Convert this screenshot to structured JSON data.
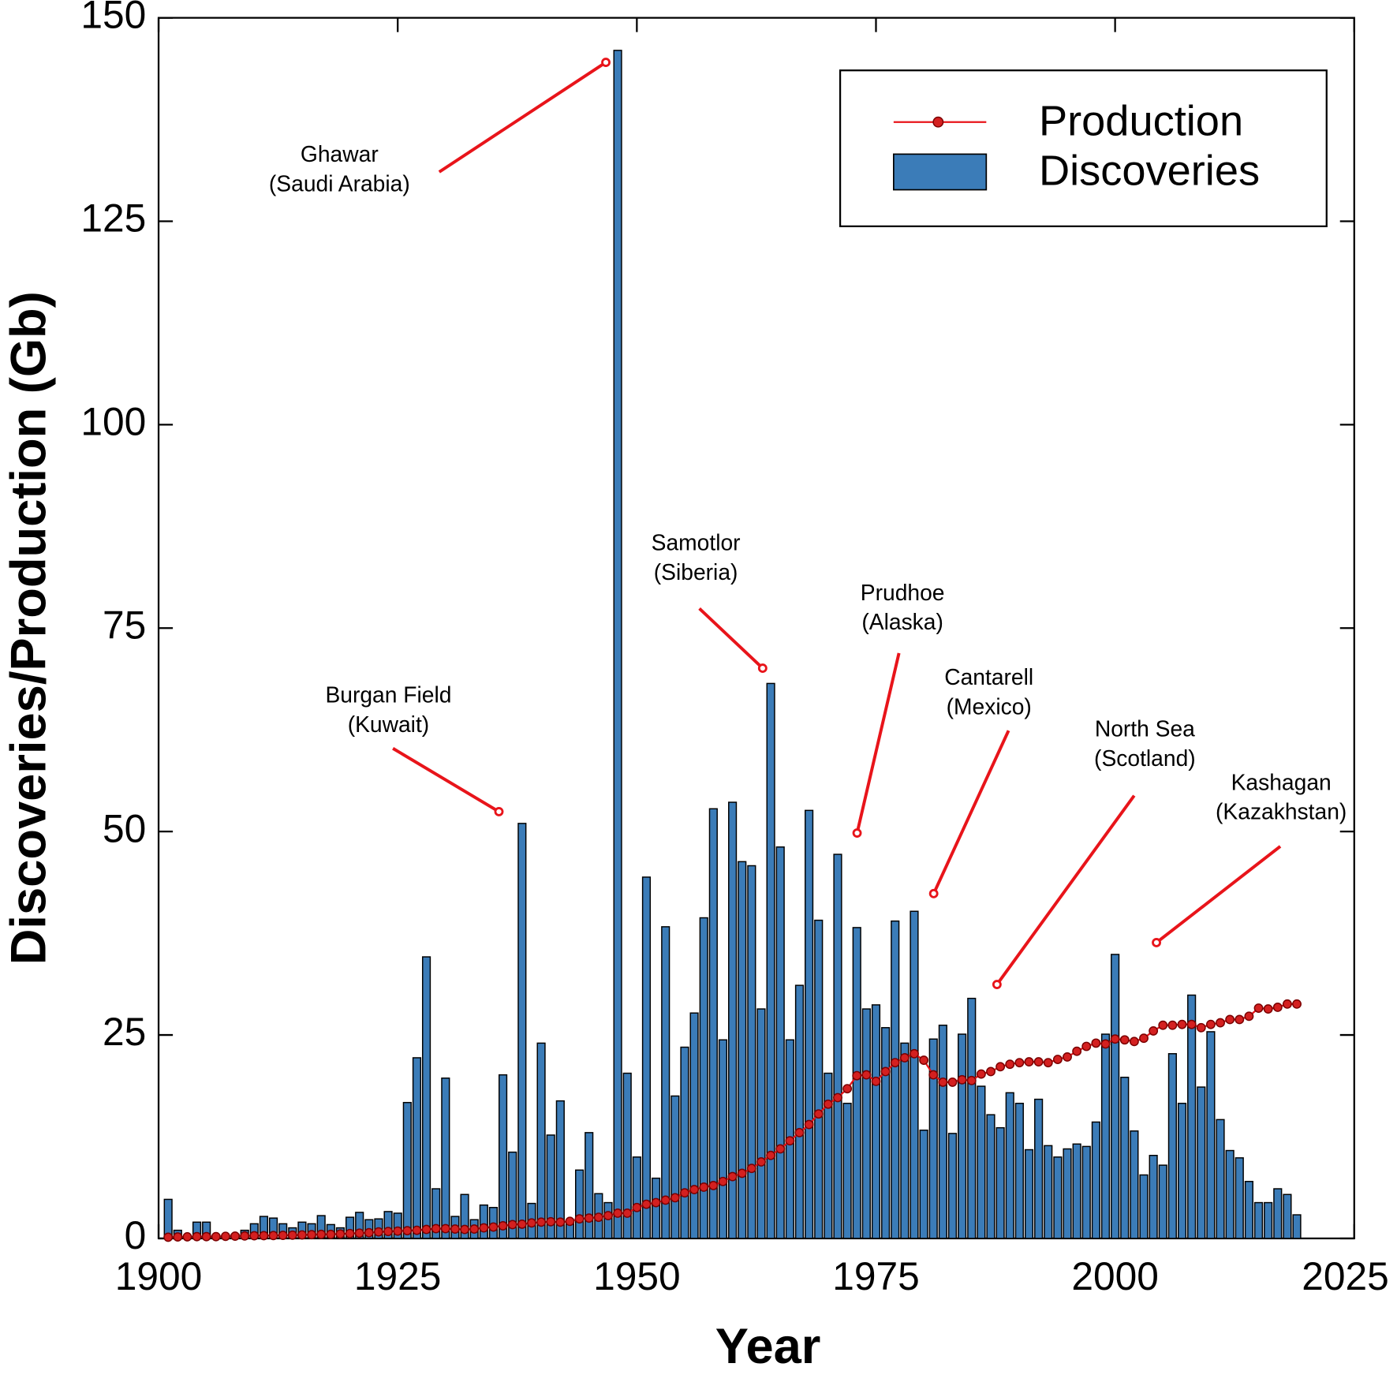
{
  "chart_data": {
    "type": "combo",
    "x_label": "Year",
    "y_label": "Discoveries/Production (Gb)",
    "xlim": [
      1900,
      2025
    ],
    "xticks": [
      1900,
      1925,
      1950,
      1975,
      2000,
      2025
    ],
    "ylim": [
      0,
      150
    ],
    "yticks": [
      0,
      25,
      50,
      75,
      100,
      125,
      150
    ],
    "legend": "upper right",
    "x": [
      1901,
      1902,
      1903,
      1904,
      1905,
      1906,
      1907,
      1908,
      1909,
      1910,
      1911,
      1912,
      1913,
      1914,
      1915,
      1916,
      1917,
      1918,
      1919,
      1920,
      1921,
      1922,
      1923,
      1924,
      1925,
      1926,
      1927,
      1928,
      1929,
      1930,
      1931,
      1932,
      1933,
      1934,
      1935,
      1936,
      1937,
      1938,
      1939,
      1940,
      1941,
      1942,
      1943,
      1944,
      1945,
      1946,
      1947,
      1948,
      1949,
      1950,
      1951,
      1952,
      1953,
      1954,
      1955,
      1956,
      1957,
      1958,
      1959,
      1960,
      1961,
      1962,
      1963,
      1964,
      1965,
      1966,
      1967,
      1968,
      1969,
      1970,
      1971,
      1972,
      1973,
      1974,
      1975,
      1976,
      1977,
      1978,
      1979,
      1980,
      1981,
      1982,
      1983,
      1984,
      1985,
      1986,
      1987,
      1988,
      1989,
      1990,
      1991,
      1992,
      1993,
      1994,
      1995,
      1996,
      1997,
      1998,
      1999,
      2000,
      2001,
      2002,
      2003,
      2004,
      2005,
      2006,
      2007,
      2008,
      2009,
      2010,
      2011,
      2012,
      2013,
      2014,
      2015,
      2016,
      2017,
      2018,
      2019
    ],
    "series": [
      {
        "name": "Production",
        "type": "line",
        "color": "#e8141a",
        "marker_color": "#d42020",
        "values": [
          0.15,
          0.18,
          0.2,
          0.22,
          0.22,
          0.22,
          0.26,
          0.28,
          0.3,
          0.33,
          0.34,
          0.35,
          0.38,
          0.4,
          0.43,
          0.46,
          0.5,
          0.5,
          0.55,
          0.6,
          0.65,
          0.7,
          0.8,
          0.85,
          0.9,
          0.95,
          1.0,
          1.1,
          1.2,
          1.2,
          1.15,
          1.1,
          1.15,
          1.3,
          1.4,
          1.55,
          1.7,
          1.75,
          1.9,
          2.0,
          2.05,
          2.0,
          2.1,
          2.4,
          2.5,
          2.6,
          2.8,
          3.1,
          3.1,
          3.8,
          4.2,
          4.4,
          4.7,
          5.0,
          5.6,
          6.0,
          6.3,
          6.5,
          7.0,
          7.6,
          8.0,
          8.6,
          9.4,
          10.2,
          11.0,
          12.0,
          13.0,
          14.0,
          15.3,
          16.5,
          17.3,
          18.4,
          20.0,
          20.1,
          19.3,
          20.5,
          21.6,
          22.2,
          22.7,
          21.9,
          20.1,
          19.2,
          19.2,
          19.5,
          19.4,
          20.2,
          20.5,
          21.1,
          21.4,
          21.6,
          21.7,
          21.7,
          21.6,
          22.0,
          22.3,
          23.0,
          23.6,
          24.0,
          23.9,
          24.5,
          24.4,
          24.2,
          24.6,
          25.5,
          26.2,
          26.2,
          26.3,
          26.3,
          25.9,
          26.3,
          26.5,
          26.9,
          26.9,
          27.3,
          28.3,
          28.2,
          28.4,
          28.8,
          28.8
        ]
      },
      {
        "name": "Discoveries",
        "type": "bar",
        "color": "#3b7cb8",
        "values": [
          4.8,
          1.0,
          0.3,
          2.0,
          2.0,
          0.3,
          0.3,
          0.5,
          1.0,
          1.8,
          2.7,
          2.5,
          1.8,
          1.3,
          2.0,
          1.8,
          2.8,
          1.7,
          1.3,
          2.6,
          3.2,
          2.3,
          2.4,
          3.3,
          3.1,
          16.7,
          22.2,
          34.6,
          6.1,
          19.7,
          2.7,
          5.4,
          2.3,
          4.1,
          3.8,
          20.1,
          10.6,
          51.0,
          4.3,
          24.0,
          12.7,
          16.9,
          2.0,
          8.4,
          13.0,
          5.5,
          4.4,
          146.0,
          20.3,
          10.0,
          44.4,
          7.4,
          38.3,
          17.5,
          23.5,
          27.7,
          39.4,
          52.8,
          24.4,
          53.6,
          46.3,
          45.8,
          28.2,
          68.2,
          48.1,
          24.4,
          31.1,
          52.6,
          39.1,
          20.3,
          47.2,
          16.6,
          38.2,
          28.2,
          28.7,
          25.9,
          39.0,
          24.0,
          40.2,
          13.3,
          24.5,
          26.2,
          12.9,
          25.1,
          29.5,
          18.7,
          15.2,
          13.6,
          17.9,
          16.6,
          10.9,
          17.1,
          11.4,
          10.0,
          11.0,
          11.6,
          11.3,
          14.3,
          25.1,
          34.9,
          19.8,
          13.2,
          7.8,
          10.2,
          9.0,
          22.7,
          16.6,
          29.9,
          18.6,
          25.4,
          14.6,
          10.8,
          9.9,
          7.0,
          4.4,
          4.4,
          6.1,
          5.4,
          2.9
        ]
      }
    ],
    "annotations": [
      {
        "lines": [
          "Ghawar",
          "(Saudi Arabia)"
        ]
      },
      {
        "lines": [
          "Burgan Field",
          "(Kuwait)"
        ]
      },
      {
        "lines": [
          "Samotlor",
          "(Siberia)"
        ]
      },
      {
        "lines": [
          "Prudhoe",
          "(Alaska)"
        ]
      },
      {
        "lines": [
          "Cantarell",
          "(Mexico)"
        ]
      },
      {
        "lines": [
          "North Sea",
          "(Scotland)"
        ]
      },
      {
        "lines": [
          "Kashagan",
          "(Kazakhstan)"
        ]
      }
    ]
  }
}
